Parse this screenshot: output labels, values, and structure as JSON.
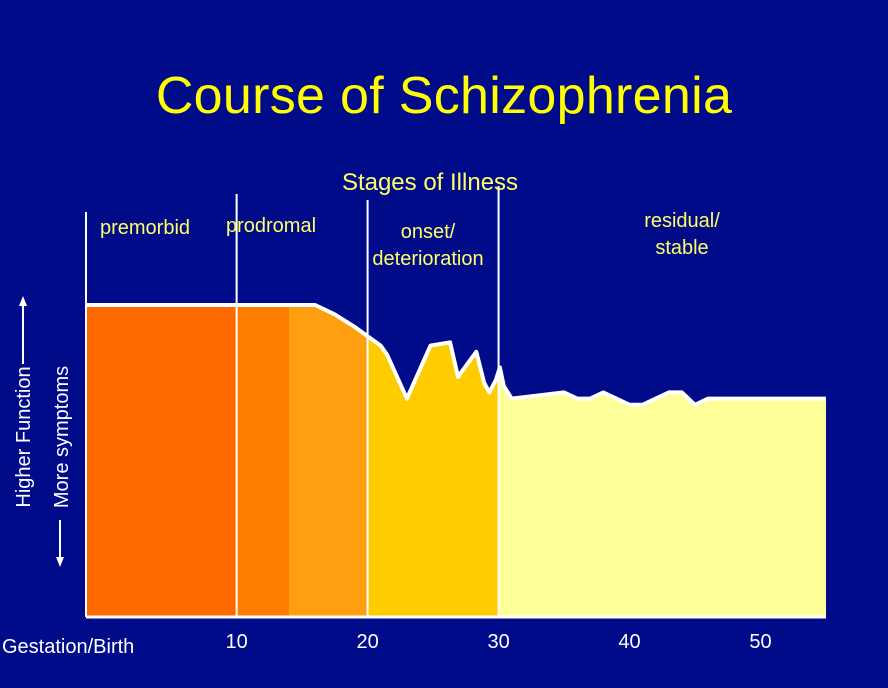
{
  "chart_data": {
    "type": "area",
    "title": "Course of Schizophrenia",
    "subtitle": "Stages of Illness",
    "xlabel": "Gestation/Birth",
    "ylabel_top": "Higher Function",
    "ylabel_bottom": "More symptoms",
    "xlim": [
      -1.5,
      55
    ],
    "ylim": [
      0,
      100
    ],
    "x_ticks": [
      10,
      20,
      30,
      40,
      50
    ],
    "stages": [
      {
        "name": "premorbid",
        "lines": [
          "premorbid"
        ],
        "start": -1.5,
        "end": 10
      },
      {
        "name": "prodromal",
        "lines": [
          "prodromal"
        ],
        "start": 10,
        "end": 20
      },
      {
        "name": "onset/deterioration",
        "lines": [
          "onset/",
          "deterioration"
        ],
        "start": 20,
        "end": 30
      },
      {
        "name": "residual/stable",
        "lines": [
          "residual/",
          "stable"
        ],
        "start": 30,
        "end": 55
      }
    ],
    "fill_bands": [
      {
        "start": -1.5,
        "end": 10,
        "color": "#ff6a00"
      },
      {
        "start": 10,
        "end": 14,
        "color": "#ff7e00"
      },
      {
        "start": 14,
        "end": 20,
        "color": "#ff9e0e"
      },
      {
        "start": 20,
        "end": 30,
        "color": "#ffcc00"
      },
      {
        "start": 30,
        "end": 55,
        "color": "#ffff99"
      }
    ],
    "function_curve": {
      "x": [
        -1.5,
        16,
        17.5,
        19,
        20,
        21,
        21.5,
        23,
        24.8,
        26.3,
        26.9,
        27.6,
        28.3,
        28.9,
        29.3,
        29.8,
        30.1,
        30.4,
        31,
        35,
        36,
        37,
        38,
        39,
        40,
        41,
        42,
        43,
        44,
        45,
        46,
        47,
        48,
        50,
        52,
        55
      ],
      "y": [
        100,
        100,
        97,
        93,
        90,
        87,
        84,
        70,
        87,
        88,
        77,
        81,
        85,
        75,
        72,
        76,
        80,
        74,
        70,
        72,
        70,
        70,
        72,
        70,
        68,
        68,
        70,
        72,
        72,
        68,
        70,
        70,
        70,
        70,
        70,
        70
      ]
    },
    "colors": {
      "background": "#000b8a",
      "title": "#ffff00",
      "stage_label": "#ffff66",
      "axis": "#ffffff"
    }
  }
}
